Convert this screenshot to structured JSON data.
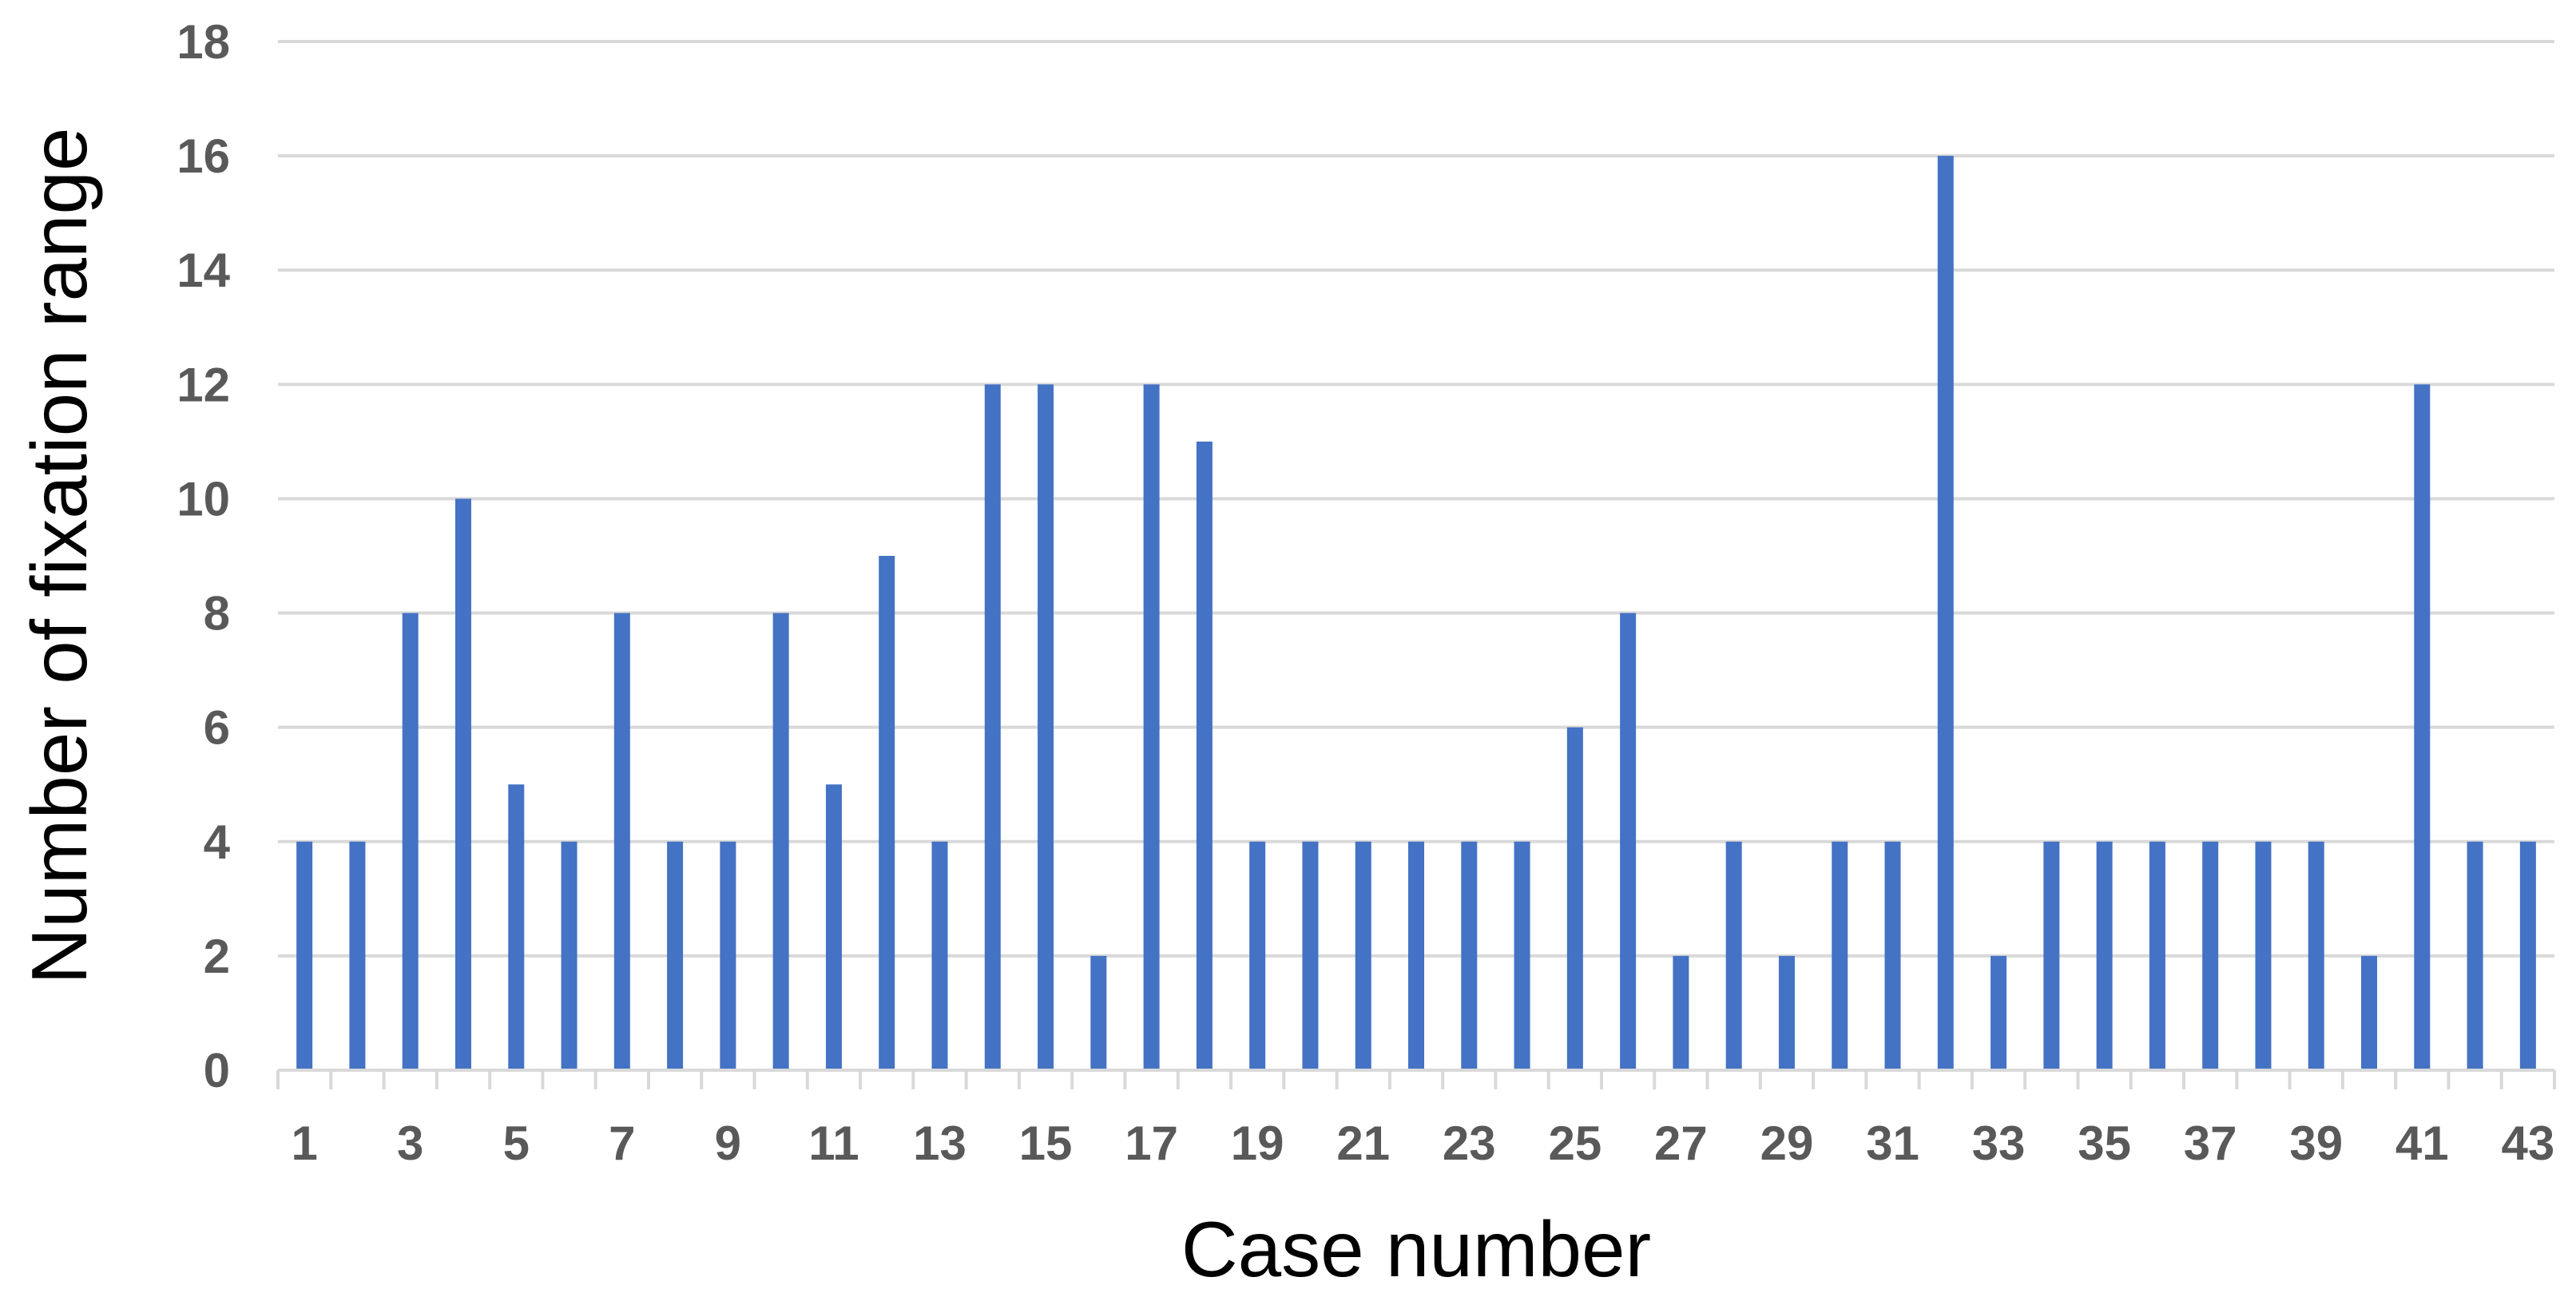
{
  "colors": {
    "bar": "#4472C4",
    "grid": "#D9D9D9",
    "tick_text": "#595959",
    "axis_title": "#000000"
  },
  "chart_data": {
    "type": "bar",
    "xlabel": "Case number",
    "ylabel": "Number of fixation range",
    "ylim": [
      0,
      18
    ],
    "yticks": [
      0,
      2,
      4,
      6,
      8,
      10,
      12,
      14,
      16,
      18
    ],
    "grid": true,
    "legend": "none",
    "categories": [
      "1",
      "2",
      "3",
      "4",
      "5",
      "6",
      "7",
      "8",
      "9",
      "10",
      "11",
      "12",
      "13",
      "14",
      "15",
      "16",
      "17",
      "18",
      "19",
      "20",
      "21",
      "22",
      "23",
      "24",
      "25",
      "26",
      "27",
      "28",
      "29",
      "30",
      "31",
      "32",
      "33",
      "34",
      "35",
      "36",
      "37",
      "38",
      "39",
      "40",
      "41",
      "42",
      "43"
    ],
    "tick_labels_shown": [
      "1",
      "3",
      "5",
      "7",
      "9",
      "11",
      "13",
      "15",
      "17",
      "19",
      "21",
      "23",
      "25",
      "27",
      "29",
      "31",
      "33",
      "35",
      "37",
      "39",
      "41",
      "43"
    ],
    "values": [
      4,
      4,
      8,
      10,
      5,
      4,
      8,
      4,
      4,
      8,
      5,
      9,
      4,
      12,
      12,
      2,
      12,
      11,
      4,
      4,
      4,
      4,
      4,
      4,
      6,
      8,
      2,
      4,
      2,
      4,
      4,
      16,
      2,
      4,
      4,
      4,
      4,
      4,
      4,
      2,
      12,
      4,
      4
    ]
  }
}
